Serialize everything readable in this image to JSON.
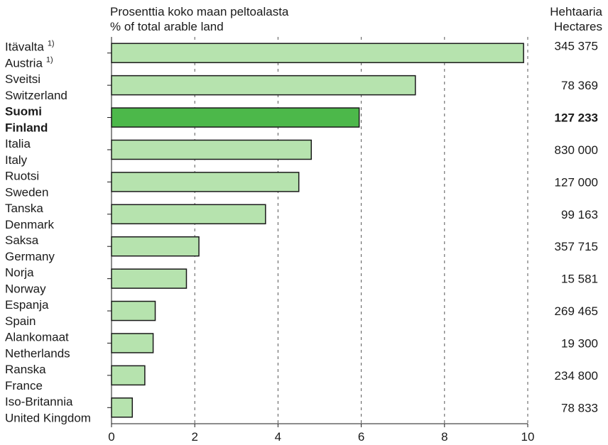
{
  "header": {
    "left_line1": "Prosenttia koko maan peltoalasta",
    "left_line2": "% of total arable land",
    "right_line1": "Hehtaaria",
    "right_line2": "Hectares"
  },
  "colors": {
    "bar_fill": "#b6e3ae",
    "bar_highlight": "#4cb84a",
    "bar_stroke": "#1a1a1a",
    "grid": "#555555"
  },
  "chart_data": {
    "type": "bar",
    "orientation": "horizontal",
    "xlabel": "",
    "ylabel": "",
    "xlim": [
      0,
      10
    ],
    "xticks": [
      0,
      2,
      4,
      6,
      8,
      10
    ],
    "grid": true,
    "categories": [
      {
        "fi": "Itävalta",
        "en": "Austria",
        "note": "1)",
        "value": 9.9,
        "hectares": "345 375",
        "highlight": false
      },
      {
        "fi": "Sveitsi",
        "en": "Switzerland",
        "value": 7.3,
        "hectares": "78 369",
        "highlight": false
      },
      {
        "fi": "Suomi",
        "en": "Finland",
        "value": 5.95,
        "hectares": "127 233",
        "highlight": true
      },
      {
        "fi": "Italia",
        "en": "Italy",
        "value": 4.8,
        "hectares": "830 000",
        "highlight": false
      },
      {
        "fi": "Ruotsi",
        "en": "Sweden",
        "value": 4.5,
        "hectares": "127 000",
        "highlight": false
      },
      {
        "fi": "Tanska",
        "en": "Denmark",
        "value": 3.7,
        "hectares": "99 163",
        "highlight": false
      },
      {
        "fi": "Saksa",
        "en": "Germany",
        "value": 2.1,
        "hectares": "357 715",
        "highlight": false
      },
      {
        "fi": "Norja",
        "en": "Norway",
        "value": 1.8,
        "hectares": "15 581",
        "highlight": false
      },
      {
        "fi": "Espanja",
        "en": "Spain",
        "value": 1.05,
        "hectares": "269 465",
        "highlight": false
      },
      {
        "fi": "Alankomaat",
        "en": "Netherlands",
        "value": 1.0,
        "hectares": "19 300",
        "highlight": false
      },
      {
        "fi": "Ranska",
        "en": "France",
        "value": 0.8,
        "hectares": "234 800",
        "highlight": false
      },
      {
        "fi": "Iso-Britannia",
        "en": "United Kingdom",
        "value": 0.5,
        "hectares": "78 833",
        "highlight": false
      }
    ]
  }
}
